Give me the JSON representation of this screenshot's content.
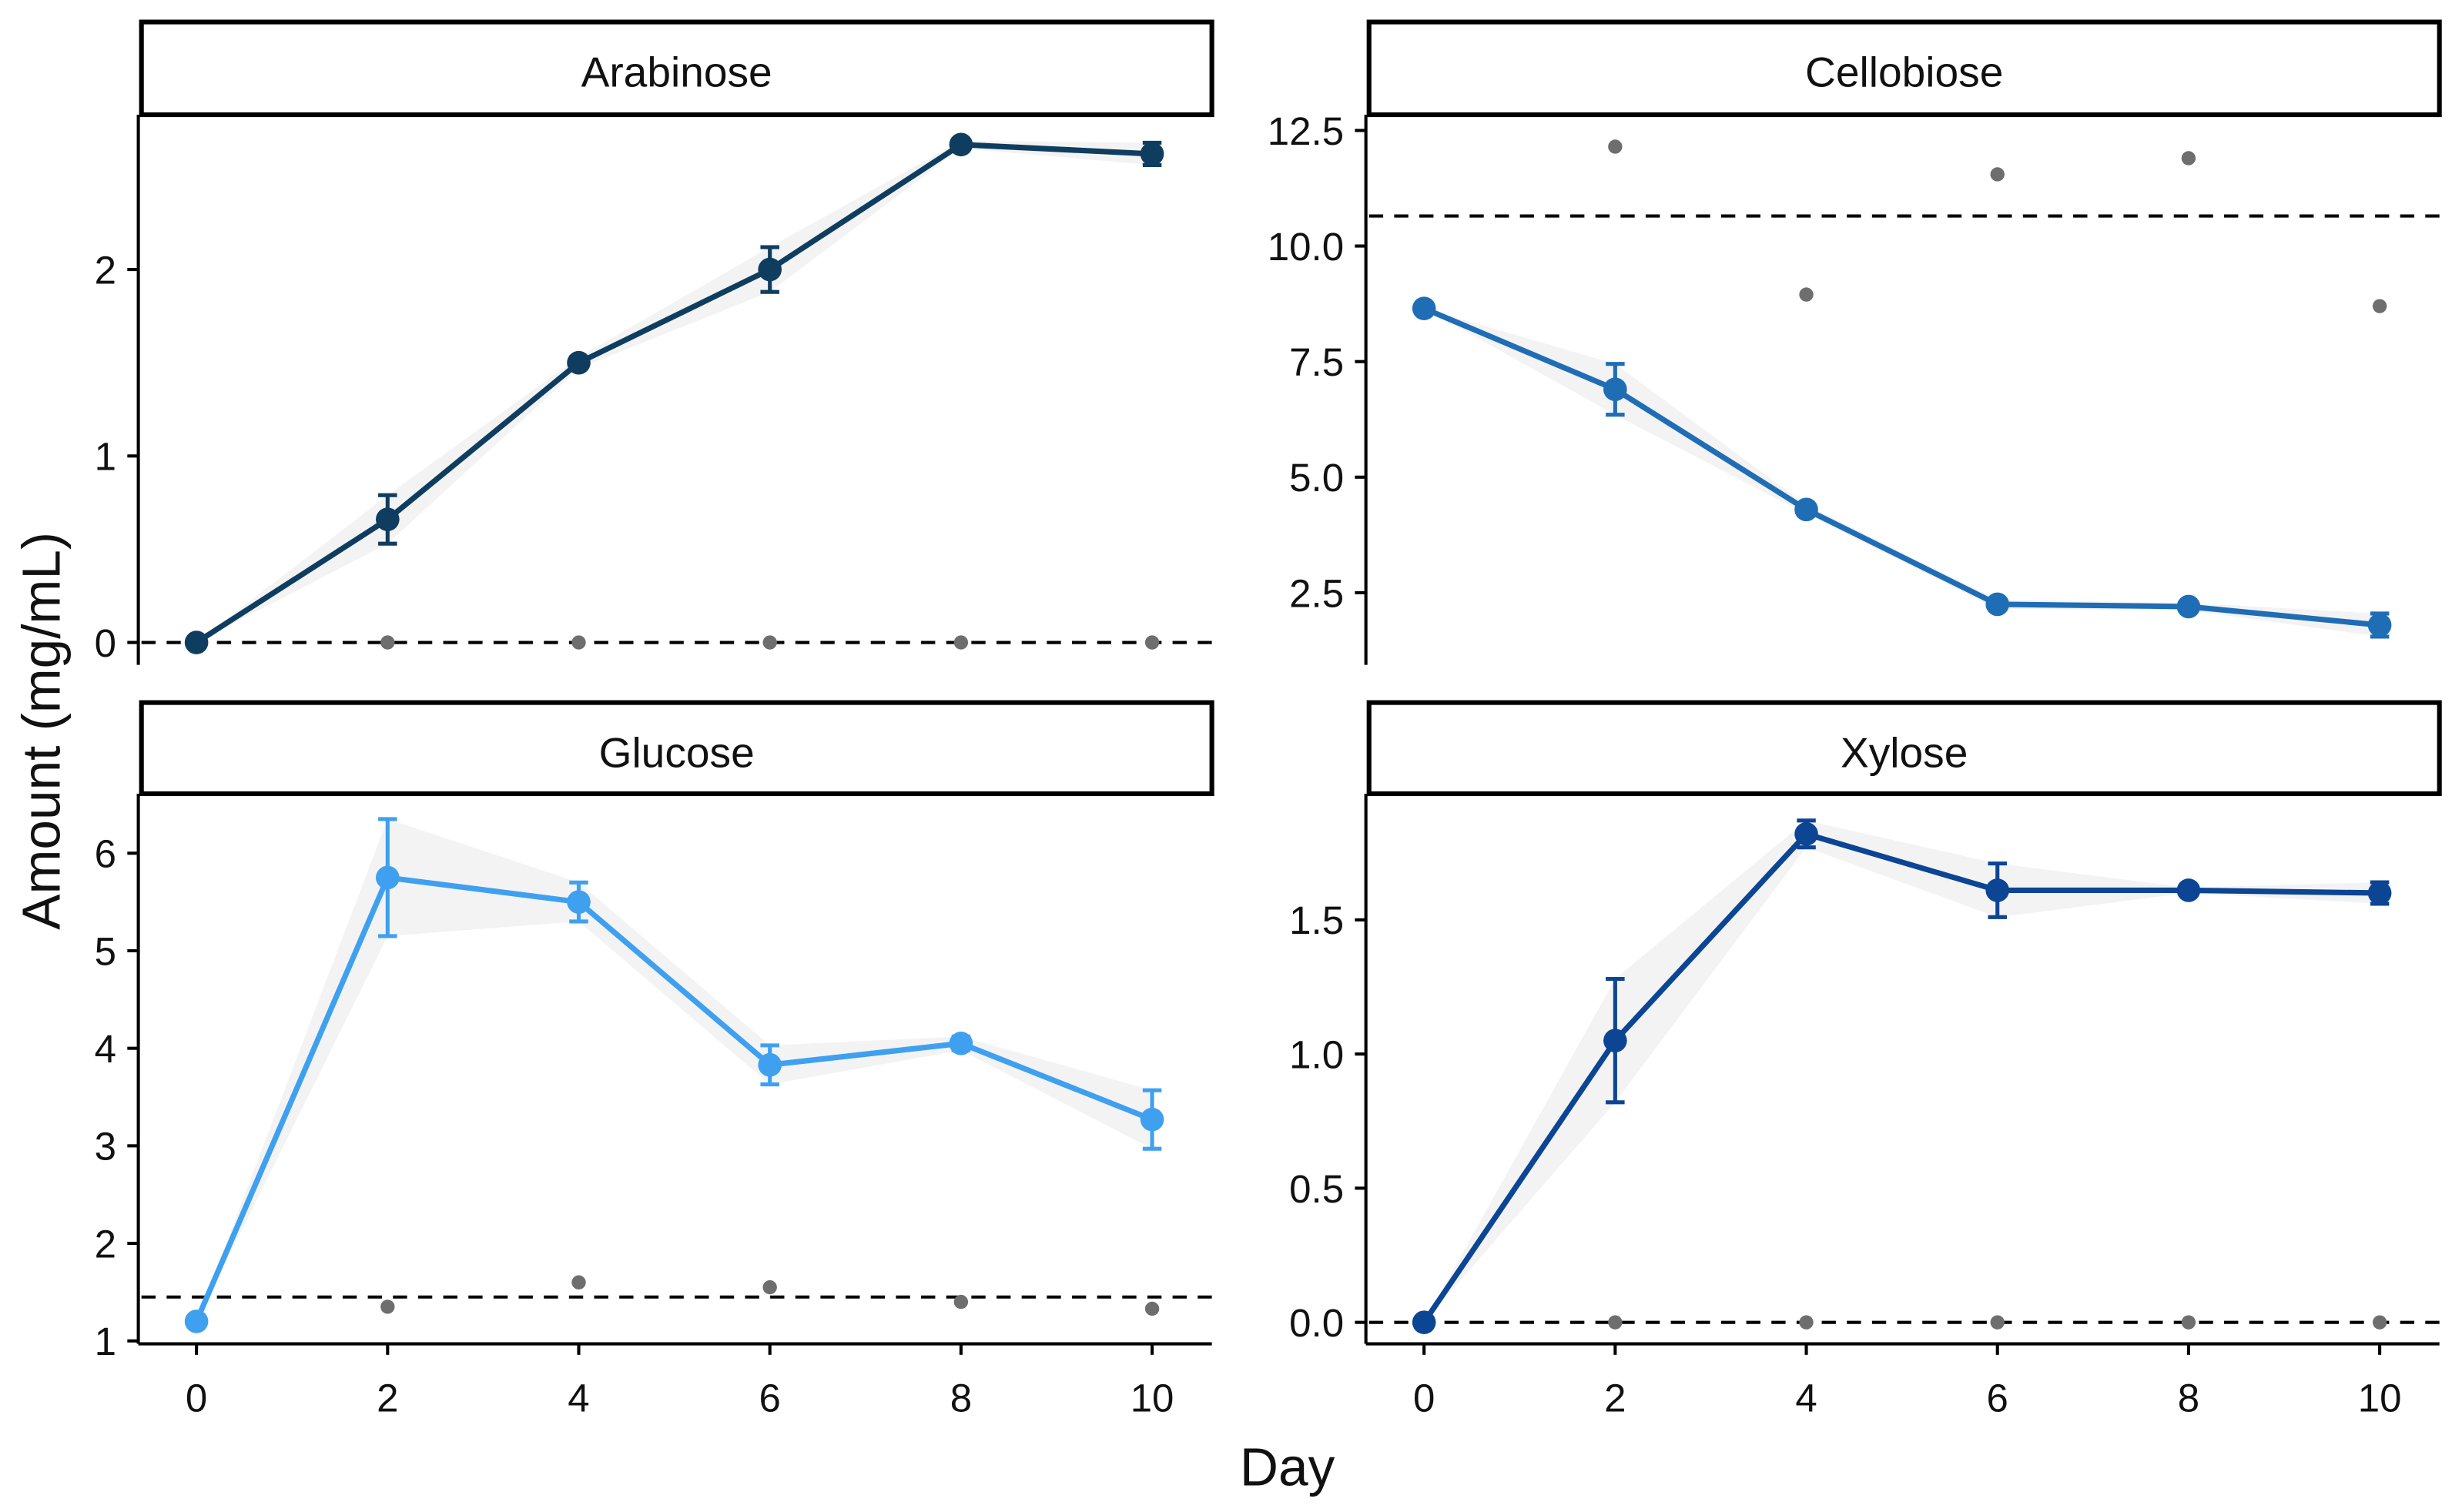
{
  "chart_data": {
    "type": "line",
    "xlabel": "Day",
    "ylabel": "Amount (mg/mL)",
    "x": [
      0,
      2,
      4,
      6,
      8,
      10
    ],
    "x_ticks": [
      "0",
      "2",
      "4",
      "6",
      "8",
      "10"
    ],
    "panels": [
      {
        "title": "Arabinose",
        "color": "#0f3d5f",
        "ylim": [
          -0.12,
          2.83
        ],
        "y_ticks": [
          0,
          1,
          2
        ],
        "y_tick_labels": [
          "0",
          "1",
          "2"
        ],
        "mean": [
          0,
          0.66,
          1.5,
          2.0,
          2.67,
          2.62
        ],
        "error": [
          0,
          0.13,
          0.03,
          0.12,
          0.02,
          0.06
        ],
        "control_x": [
          2,
          4,
          6,
          8,
          10
        ],
        "control": [
          0,
          0,
          0,
          0,
          0
        ],
        "reference_line": 0
      },
      {
        "title": "Cellobiose",
        "color": "#1f6db5",
        "ylim": [
          0.94,
          12.84
        ],
        "y_ticks": [
          2.5,
          5,
          7.5,
          10,
          12.5
        ],
        "y_tick_labels": [
          "2.5",
          "5.0",
          "7.5",
          "10.0",
          "12.5"
        ],
        "mean": [
          8.65,
          6.9,
          4.3,
          2.25,
          2.2,
          1.8
        ],
        "error": [
          0,
          0.55,
          0.1,
          0.1,
          0.08,
          0.25
        ],
        "control_x": [
          2,
          4,
          6,
          8,
          10
        ],
        "control": [
          12.15,
          8.95,
          11.55,
          11.9,
          8.7
        ],
        "reference_line": 10.65
      },
      {
        "title": "Glucose",
        "color": "#3fa0ef",
        "ylim": [
          0.97,
          6.61
        ],
        "y_ticks": [
          1,
          2,
          3,
          4,
          5,
          6
        ],
        "y_tick_labels": [
          "1",
          "2",
          "3",
          "4",
          "5",
          "6"
        ],
        "mean": [
          1.2,
          5.75,
          5.5,
          3.83,
          4.05,
          3.27
        ],
        "error": [
          0,
          0.6,
          0.2,
          0.2,
          0.07,
          0.3
        ],
        "control_x": [
          2,
          4,
          6,
          8,
          10
        ],
        "control": [
          1.35,
          1.6,
          1.55,
          1.4,
          1.33
        ],
        "reference_line": 1.45
      },
      {
        "title": "Xylose",
        "color": "#0b4594",
        "ylim": [
          -0.08,
          1.97
        ],
        "y_ticks": [
          0,
          0.5,
          1,
          1.5
        ],
        "y_tick_labels": [
          "0.0",
          "0.5",
          "1.0",
          "1.5"
        ],
        "mean": [
          0,
          1.05,
          1.82,
          1.61,
          1.61,
          1.6
        ],
        "error": [
          0,
          0.23,
          0.05,
          0.1,
          0.01,
          0.04
        ],
        "control_x": [
          2,
          4,
          6,
          8,
          10
        ],
        "control": [
          0,
          0,
          0,
          0,
          0
        ],
        "reference_line": 0
      }
    ]
  }
}
